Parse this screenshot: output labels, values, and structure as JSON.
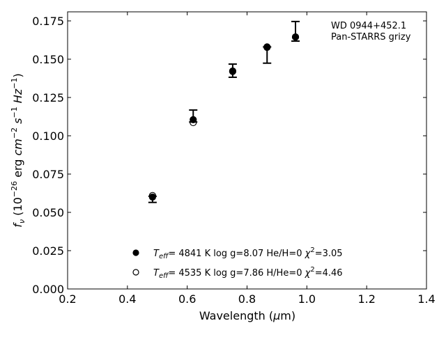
{
  "chart_data": {
    "type": "scatter",
    "title": "",
    "xlabel": "Wavelength (μm)",
    "ylabel": "f_ν (10^-26 erg cm^-2 s^-1 Hz^-1)",
    "xlim": [
      0.2,
      1.4
    ],
    "ylim": [
      0.0,
      0.18
    ],
    "xticks": [
      "0.2",
      "0.4",
      "0.6",
      "0.8",
      "1.0",
      "1.2",
      "1.4"
    ],
    "yticks": [
      "0.000",
      "0.025",
      "0.050",
      "0.075",
      "0.100",
      "0.125",
      "0.150",
      "0.175"
    ],
    "grid": false,
    "annotation": [
      "WD 0944+452.1",
      "Pan-STARRS grizy"
    ],
    "observed": {
      "name": "Pan-STARRS grizy",
      "x": [
        0.484,
        0.62,
        0.752,
        0.867,
        0.962
      ],
      "y": [
        0.0585,
        0.1129,
        0.1425,
        0.1527,
        0.1682
      ],
      "yerr": [
        0.002,
        0.0039,
        0.0043,
        0.0053,
        0.0064
      ]
    },
    "series": [
      {
        "name": "model-filled",
        "marker": "filled-circle",
        "label": {
          "teff": "4841 K",
          "logg": "log g=8.07",
          "comp": "He/H=0",
          "chi2": "=3.05"
        },
        "x": [
          0.484,
          0.62,
          0.752,
          0.867,
          0.962
        ],
        "y": [
          0.06,
          0.1105,
          0.1423,
          0.1577,
          0.1645
        ]
      },
      {
        "name": "model-open",
        "marker": "open-circle",
        "label": {
          "teff": "4535 K",
          "logg": "log g=7.86",
          "comp": "H/He=0",
          "chi2": "=4.46"
        },
        "x": [
          0.484,
          0.62,
          0.752,
          0.867,
          0.962
        ],
        "y": [
          0.061,
          0.1086,
          0.142,
          0.158,
          0.1645
        ]
      }
    ],
    "legend_placement": "bottom-center"
  }
}
